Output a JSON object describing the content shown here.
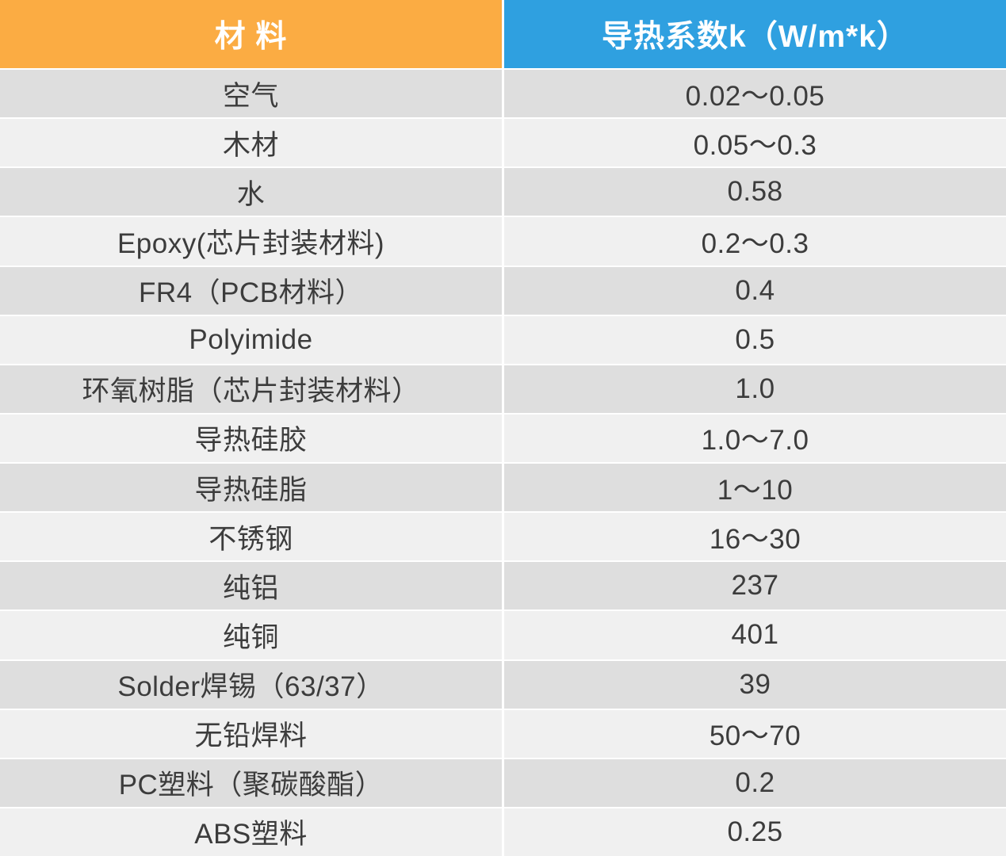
{
  "table": {
    "headers": [
      {
        "label": "材 料",
        "color": "#FBAC43"
      },
      {
        "label": "导热系数k（W/m*k）",
        "color": "#2FA0E0"
      }
    ],
    "row_colors": {
      "odd": "#DEDEDE",
      "even": "#F0F0F0"
    },
    "text_color": "#3C3C3C",
    "header_text_color": "#FFFFFF",
    "rows": [
      [
        "空气",
        "0.02～0.05"
      ],
      [
        "木材",
        "0.05～0.3"
      ],
      [
        "水",
        "0.58"
      ],
      [
        "Epoxy(芯片封装材料)",
        "0.2～0.3"
      ],
      [
        "FR4（PCB材料）",
        "0.4"
      ],
      [
        "Polyimide",
        "0.5"
      ],
      [
        "环氧树脂（芯片封装材料）",
        "1.0"
      ],
      [
        "导热硅胶",
        "1.0～7.0"
      ],
      [
        "导热硅脂",
        "1～10"
      ],
      [
        "不锈钢",
        "16～30"
      ],
      [
        "纯铝",
        "237"
      ],
      [
        "纯铜",
        "401"
      ],
      [
        "Solder焊锡（63/37）",
        "39"
      ],
      [
        "无铅焊料",
        "50～70"
      ],
      [
        "PC塑料（聚碳酸酯）",
        "0.2"
      ],
      [
        "ABS塑料",
        "0.25"
      ]
    ]
  },
  "chart_data": {
    "type": "table",
    "title": "",
    "columns": [
      "材 料",
      "导热系数k（W/m*k）"
    ],
    "rows": [
      [
        "空气",
        "0.02～0.05"
      ],
      [
        "木材",
        "0.05～0.3"
      ],
      [
        "水",
        "0.58"
      ],
      [
        "Epoxy(芯片封装材料)",
        "0.2～0.3"
      ],
      [
        "FR4（PCB材料）",
        "0.4"
      ],
      [
        "Polyimide",
        "0.5"
      ],
      [
        "环氧树脂（芯片封装材料）",
        "1.0"
      ],
      [
        "导热硅胶",
        "1.0～7.0"
      ],
      [
        "导热硅脂",
        "1～10"
      ],
      [
        "不锈钢",
        "16～30"
      ],
      [
        "纯铝",
        "237"
      ],
      [
        "纯铜",
        "401"
      ],
      [
        "Solder焊锡（63/37）",
        "39"
      ],
      [
        "无铅焊料",
        "50～70"
      ],
      [
        "PC塑料（聚碳酸酯）",
        "0.2"
      ],
      [
        "ABS塑料",
        "0.25"
      ]
    ],
    "layout": {
      "header_colors": [
        "#FBAC43",
        "#2FA0E0"
      ],
      "stripe_colors": [
        "#DEDEDE",
        "#F0F0F0"
      ],
      "grid": "white 2-3px gutters between all cells"
    }
  }
}
